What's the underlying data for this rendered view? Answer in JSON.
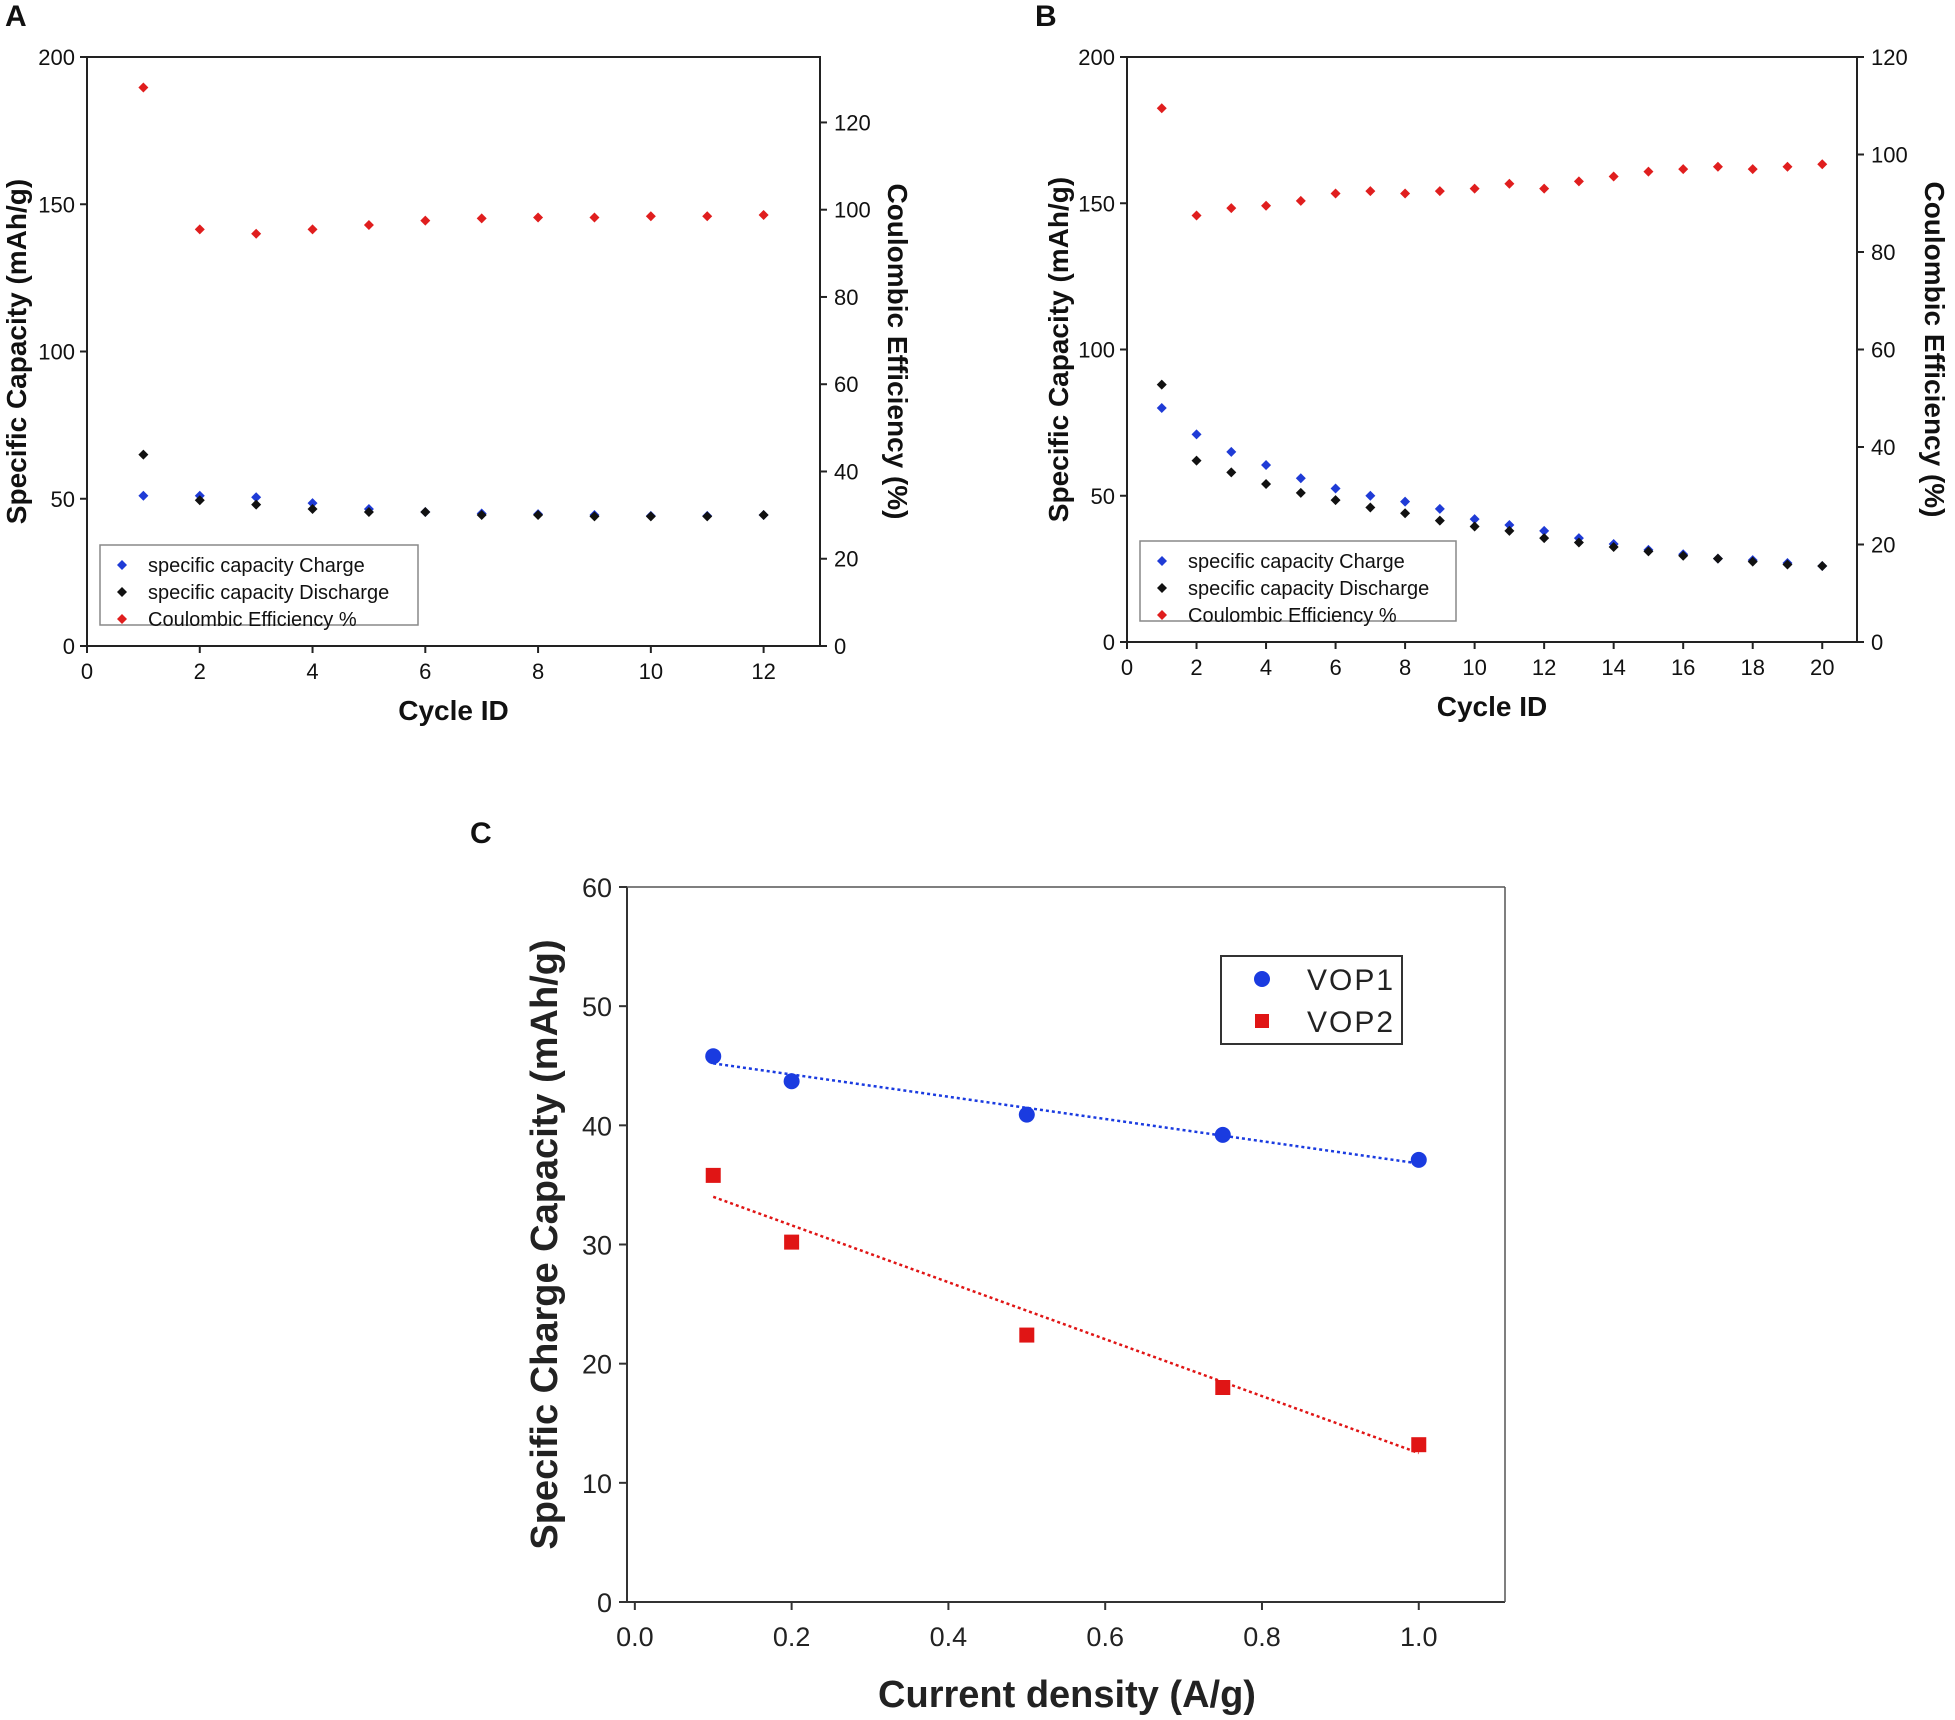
{
  "chart_data": [
    {
      "panel": "A",
      "type": "scatter",
      "xlabel": "Cycle ID",
      "ylabel": "Specific Capacity (mAh/g)",
      "y2label": "Coulombic Efficiency (%)",
      "xlim": [
        0,
        13
      ],
      "ylim": [
        0,
        200
      ],
      "y2lim": [
        0,
        135
      ],
      "xticks": [
        0,
        2,
        4,
        6,
        8,
        10,
        12
      ],
      "yticks": [
        0,
        50,
        100,
        150,
        200
      ],
      "y2ticks": [
        0,
        20,
        40,
        60,
        80,
        100,
        120
      ],
      "legend": [
        "specific capacity Charge",
        "specific capacity Discharge",
        "Coulombic Efficiency %"
      ],
      "legend_position": "bottom-left",
      "series": [
        {
          "name": "specific capacity Charge",
          "axis": "left",
          "color": "#1f3bd6",
          "x": [
            1,
            2,
            3,
            4,
            5,
            6,
            7,
            8,
            9,
            10,
            11,
            12
          ],
          "y": [
            51,
            51,
            50.5,
            48.5,
            46.5,
            45.5,
            45,
            44.8,
            44.5,
            44.2,
            44.2,
            44.5
          ]
        },
        {
          "name": "specific capacity Discharge",
          "axis": "left",
          "color": "#111111",
          "x": [
            1,
            2,
            3,
            4,
            5,
            6,
            7,
            8,
            9,
            10,
            11,
            12
          ],
          "y": [
            65,
            49.5,
            48,
            46.5,
            45.5,
            45.5,
            44.5,
            44.5,
            44,
            44,
            44,
            44.5
          ]
        },
        {
          "name": "Coulombic Efficiency %",
          "axis": "right",
          "color": "#e01e1e",
          "x": [
            1,
            2,
            3,
            4,
            5,
            6,
            7,
            8,
            9,
            10,
            11,
            12
          ],
          "y": [
            128,
            95.5,
            94.5,
            95.5,
            96.5,
            97.5,
            98,
            98.2,
            98.2,
            98.5,
            98.5,
            98.8
          ]
        }
      ]
    },
    {
      "panel": "B",
      "type": "scatter",
      "xlabel": "Cycle ID",
      "ylabel": "Specific Capacity (mAh/g)",
      "y2label": "Coulombic Efficiency (%)",
      "xlim": [
        0,
        21
      ],
      "ylim": [
        0,
        200
      ],
      "y2lim": [
        0,
        120
      ],
      "xticks": [
        0,
        2,
        4,
        6,
        8,
        10,
        12,
        14,
        16,
        18,
        20
      ],
      "yticks": [
        0,
        50,
        100,
        150,
        200
      ],
      "y2ticks": [
        0,
        20,
        40,
        60,
        80,
        100,
        120
      ],
      "legend": [
        "specific capacity Charge",
        "specific capacity Discharge",
        "Coulombic Efficiency %"
      ],
      "legend_position": "bottom-left",
      "series": [
        {
          "name": "specific capacity Charge",
          "axis": "left",
          "color": "#1f3bd6",
          "x": [
            1,
            2,
            3,
            4,
            5,
            6,
            7,
            8,
            9,
            10,
            11,
            12,
            13,
            14,
            15,
            16,
            17,
            18,
            19,
            20
          ],
          "y": [
            80,
            71,
            65,
            60.5,
            56,
            52.5,
            50,
            48,
            45.5,
            42,
            40,
            38,
            35.5,
            33.5,
            31.5,
            30,
            28.5,
            28,
            27,
            26
          ]
        },
        {
          "name": "specific capacity Discharge",
          "axis": "left",
          "color": "#111111",
          "x": [
            1,
            2,
            3,
            4,
            5,
            6,
            7,
            8,
            9,
            10,
            11,
            12,
            13,
            14,
            15,
            16,
            17,
            18,
            19,
            20
          ],
          "y": [
            88,
            62,
            58,
            54,
            51,
            48.5,
            46,
            44,
            41.5,
            39.5,
            38,
            35.5,
            34,
            32.5,
            31,
            29.5,
            28.5,
            27.5,
            26.5,
            26
          ]
        },
        {
          "name": "Coulombic Efficiency %",
          "axis": "right",
          "color": "#e01e1e",
          "x": [
            1,
            2,
            3,
            4,
            5,
            6,
            7,
            8,
            9,
            10,
            11,
            12,
            13,
            14,
            15,
            16,
            17,
            18,
            19,
            20
          ],
          "y": [
            109.5,
            87.5,
            89,
            89.5,
            90.5,
            92,
            92.5,
            92,
            92.5,
            93,
            94,
            93,
            94.5,
            95.5,
            96.5,
            97,
            97.5,
            97,
            97.5,
            98
          ]
        }
      ]
    },
    {
      "panel": "C",
      "type": "scatter",
      "xlabel": "Current density (A/g)",
      "ylabel": "Specific Charge Capacity (mAh/g)",
      "xlim": [
        -0.01,
        1.11
      ],
      "ylim": [
        0,
        60
      ],
      "xticks": [
        0.0,
        0.2,
        0.4,
        0.6,
        0.8,
        1.0
      ],
      "xtick_labels": [
        "0.0",
        "0.2",
        "0.4",
        "0.6",
        "0.8",
        "1.0"
      ],
      "yticks": [
        0,
        10,
        20,
        30,
        40,
        50,
        60
      ],
      "legend": [
        "VOP1",
        "VOP2"
      ],
      "legend_position": "top-right",
      "series": [
        {
          "name": "VOP1",
          "marker": "circle",
          "color": "#1a3be0",
          "x": [
            0.1,
            0.2,
            0.5,
            0.75,
            1.0
          ],
          "y": [
            45.8,
            43.7,
            40.9,
            39.2,
            37.1
          ],
          "trend": [
            [
              0.1,
              45.2
            ],
            [
              1.0,
              36.8
            ]
          ]
        },
        {
          "name": "VOP2",
          "marker": "square",
          "color": "#e01515",
          "x": [
            0.1,
            0.2,
            0.5,
            0.75,
            1.0
          ],
          "y": [
            35.8,
            30.2,
            22.4,
            18,
            13.2
          ],
          "trend": [
            [
              0.1,
              34.0
            ],
            [
              1.0,
              12.5
            ]
          ]
        }
      ]
    }
  ]
}
